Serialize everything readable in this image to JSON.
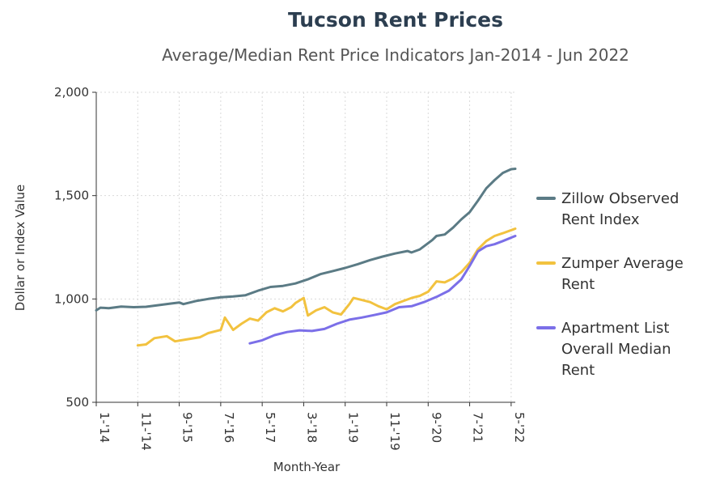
{
  "chart_data": {
    "type": "line",
    "title": "Tucson Rent Prices",
    "subtitle": "Average/Median Rent Price Indicators Jan-2014 - Jun 2022",
    "xlabel": "Month-Year",
    "ylabel": "Dollar or Index Value",
    "ylim": [
      500,
      2000
    ],
    "yticks": [
      500,
      1000,
      1500,
      2000
    ],
    "ytick_labels": [
      "500",
      "1,000",
      "1,500",
      "2,000"
    ],
    "xlim": [
      "2014-01",
      "2022-06"
    ],
    "xticks": [
      {
        "date": "2014-01",
        "label": "1-'14"
      },
      {
        "date": "2014-11",
        "label": "11-'14"
      },
      {
        "date": "2015-09",
        "label": "9-'15"
      },
      {
        "date": "2016-07",
        "label": "7-'16"
      },
      {
        "date": "2017-05",
        "label": "5-'17"
      },
      {
        "date": "2018-03",
        "label": "3-'18"
      },
      {
        "date": "2019-01",
        "label": "1-'19"
      },
      {
        "date": "2019-11",
        "label": "11-'19"
      },
      {
        "date": "2020-09",
        "label": "9-'20"
      },
      {
        "date": "2021-07",
        "label": "7-'21"
      },
      {
        "date": "2022-05",
        "label": "5-'22"
      }
    ],
    "grid": true,
    "legend_position": "right",
    "series": [
      {
        "name": "Zillow Observed Rent Index",
        "legend_lines": [
          "Zillow Observed",
          "Rent Index"
        ],
        "color": "#5b7b85",
        "points": [
          [
            "2014-01",
            945
          ],
          [
            "2014-02",
            958
          ],
          [
            "2014-04",
            955
          ],
          [
            "2014-07",
            963
          ],
          [
            "2014-10",
            960
          ],
          [
            "2015-01",
            962
          ],
          [
            "2015-04",
            970
          ],
          [
            "2015-07",
            978
          ],
          [
            "2015-09",
            983
          ],
          [
            "2015-10",
            975
          ],
          [
            "2016-01",
            990
          ],
          [
            "2016-04",
            1000
          ],
          [
            "2016-07",
            1008
          ],
          [
            "2016-10",
            1012
          ],
          [
            "2017-01",
            1018
          ],
          [
            "2017-04",
            1040
          ],
          [
            "2017-07",
            1058
          ],
          [
            "2017-10",
            1063
          ],
          [
            "2018-01",
            1075
          ],
          [
            "2018-04",
            1095
          ],
          [
            "2018-07",
            1120
          ],
          [
            "2018-10",
            1135
          ],
          [
            "2019-01",
            1150
          ],
          [
            "2019-04",
            1168
          ],
          [
            "2019-07",
            1188
          ],
          [
            "2019-10",
            1205
          ],
          [
            "2020-01",
            1220
          ],
          [
            "2020-04",
            1232
          ],
          [
            "2020-05",
            1225
          ],
          [
            "2020-07",
            1240
          ],
          [
            "2020-10",
            1285
          ],
          [
            "2020-11",
            1305
          ],
          [
            "2021-01",
            1312
          ],
          [
            "2021-03",
            1345
          ],
          [
            "2021-05",
            1385
          ],
          [
            "2021-07",
            1420
          ],
          [
            "2021-09",
            1475
          ],
          [
            "2021-11",
            1535
          ],
          [
            "2022-01",
            1575
          ],
          [
            "2022-03",
            1610
          ],
          [
            "2022-05",
            1628
          ],
          [
            "2022-06",
            1630
          ]
        ]
      },
      {
        "name": "Zumper Average Rent",
        "legend_lines": [
          "Zumper Average",
          "Rent"
        ],
        "color": "#f2c23f",
        "points": [
          [
            "2014-11",
            775
          ],
          [
            "2015-01",
            780
          ],
          [
            "2015-03",
            810
          ],
          [
            "2015-06",
            820
          ],
          [
            "2015-08",
            795
          ],
          [
            "2015-11",
            805
          ],
          [
            "2016-02",
            815
          ],
          [
            "2016-04",
            835
          ],
          [
            "2016-07",
            850
          ],
          [
            "2016-08",
            910
          ],
          [
            "2016-10",
            850
          ],
          [
            "2016-12",
            880
          ],
          [
            "2017-02",
            905
          ],
          [
            "2017-04",
            895
          ],
          [
            "2017-06",
            935
          ],
          [
            "2017-08",
            955
          ],
          [
            "2017-10",
            940
          ],
          [
            "2017-12",
            960
          ],
          [
            "2018-01",
            980
          ],
          [
            "2018-03",
            1005
          ],
          [
            "2018-04",
            920
          ],
          [
            "2018-06",
            945
          ],
          [
            "2018-08",
            960
          ],
          [
            "2018-10",
            935
          ],
          [
            "2018-12",
            925
          ],
          [
            "2019-02",
            975
          ],
          [
            "2019-03",
            1005
          ],
          [
            "2019-05",
            995
          ],
          [
            "2019-07",
            985
          ],
          [
            "2019-09",
            965
          ],
          [
            "2019-11",
            950
          ],
          [
            "2020-01",
            975
          ],
          [
            "2020-03",
            990
          ],
          [
            "2020-05",
            1005
          ],
          [
            "2020-07",
            1015
          ],
          [
            "2020-09",
            1035
          ],
          [
            "2020-11",
            1085
          ],
          [
            "2021-01",
            1080
          ],
          [
            "2021-03",
            1100
          ],
          [
            "2021-05",
            1130
          ],
          [
            "2021-07",
            1175
          ],
          [
            "2021-09",
            1240
          ],
          [
            "2021-11",
            1280
          ],
          [
            "2022-01",
            1305
          ],
          [
            "2022-03",
            1318
          ],
          [
            "2022-06",
            1340
          ]
        ]
      },
      {
        "name": "Apartment List Overall Median Rent",
        "legend_lines": [
          "Apartment List",
          "Overall Median",
          "Rent"
        ],
        "color": "#7b6fe8",
        "points": [
          [
            "2017-02",
            785
          ],
          [
            "2017-05",
            800
          ],
          [
            "2017-08",
            825
          ],
          [
            "2017-11",
            840
          ],
          [
            "2018-02",
            848
          ],
          [
            "2018-05",
            845
          ],
          [
            "2018-08",
            855
          ],
          [
            "2018-11",
            880
          ],
          [
            "2019-02",
            900
          ],
          [
            "2019-05",
            910
          ],
          [
            "2019-08",
            922
          ],
          [
            "2019-11",
            935
          ],
          [
            "2020-02",
            960
          ],
          [
            "2020-05",
            965
          ],
          [
            "2020-08",
            985
          ],
          [
            "2020-11",
            1010
          ],
          [
            "2021-02",
            1040
          ],
          [
            "2021-05",
            1095
          ],
          [
            "2021-07",
            1160
          ],
          [
            "2021-09",
            1230
          ],
          [
            "2021-11",
            1255
          ],
          [
            "2022-01",
            1265
          ],
          [
            "2022-03",
            1280
          ],
          [
            "2022-06",
            1305
          ]
        ]
      }
    ]
  }
}
